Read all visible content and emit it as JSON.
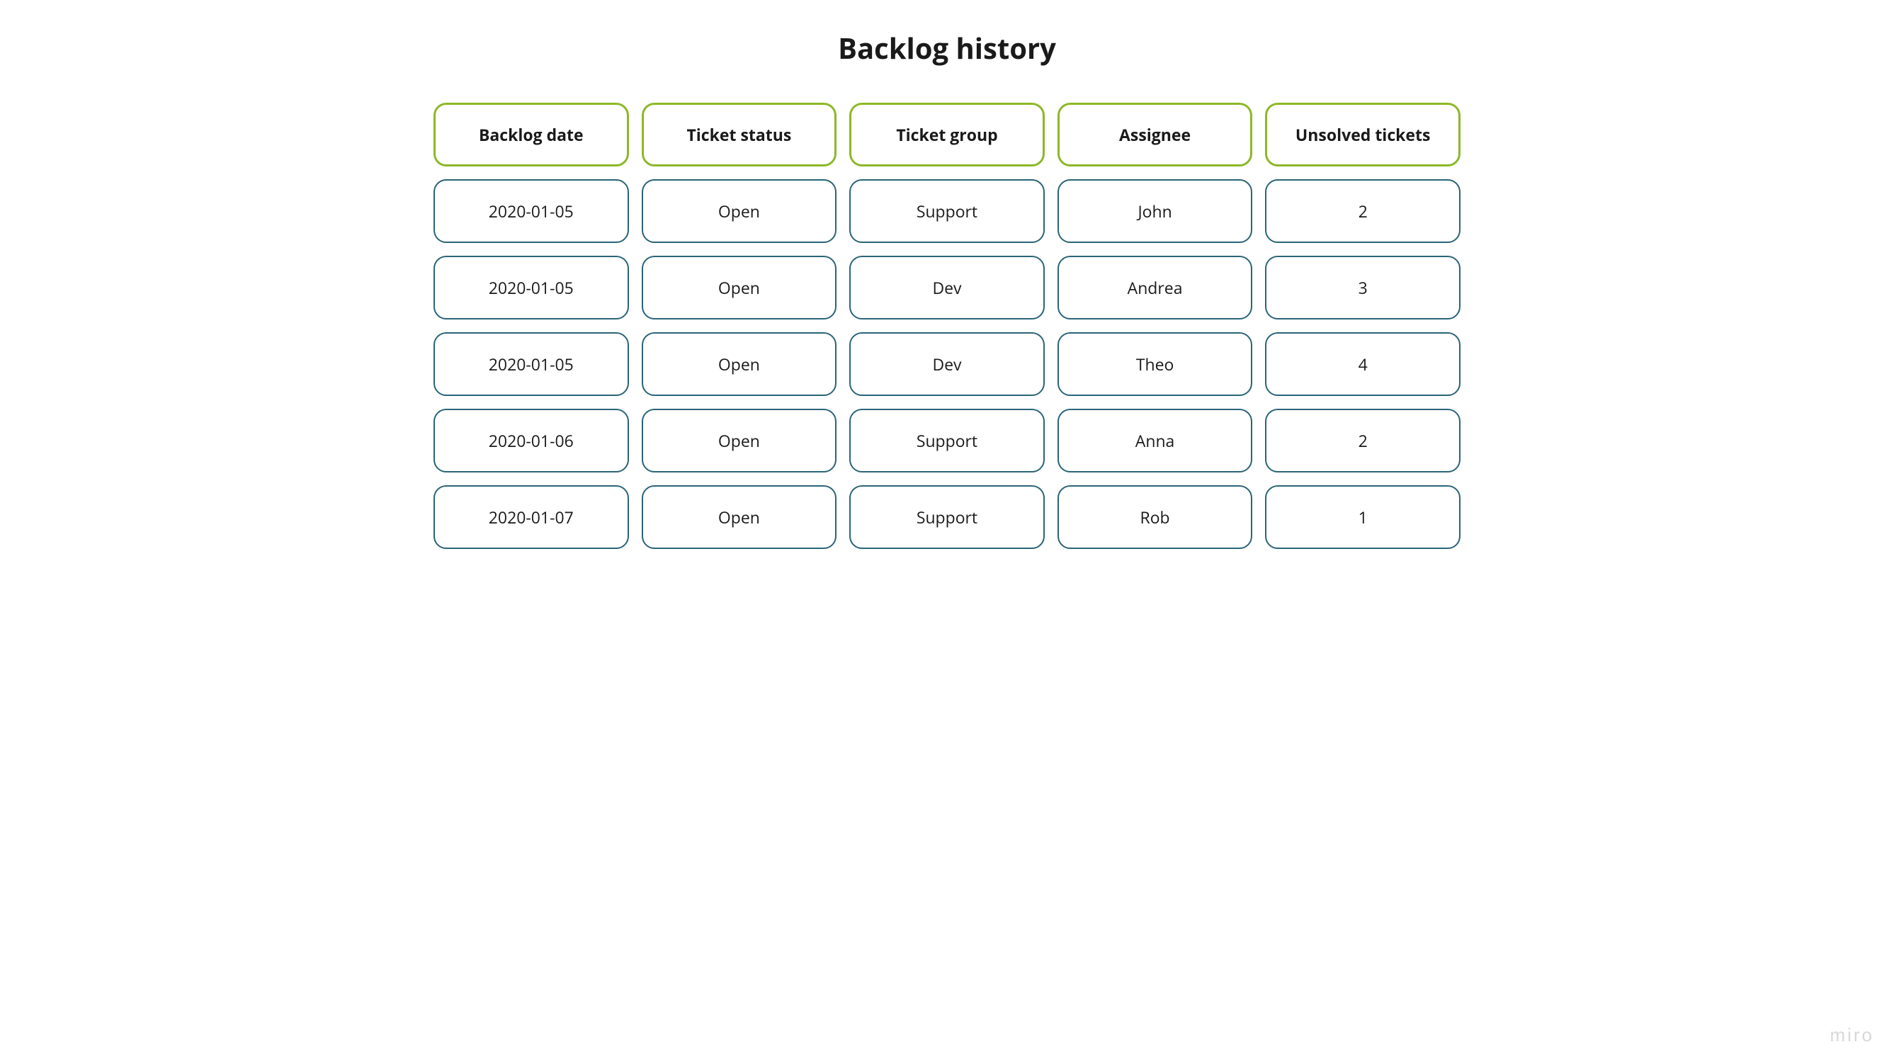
{
  "title": "Backlog history",
  "watermark": "miro",
  "styling": {
    "header_border_color": "#8cb827",
    "data_border_color": "#2a6478",
    "background_color": "#ffffff",
    "text_color": "#1a1a1a",
    "title_fontsize": 40,
    "cell_fontsize": 23,
    "border_radius": 18,
    "header_border_width": 3,
    "data_border_width": 2.5,
    "row_gap": 18,
    "col_gap": 18
  },
  "table": {
    "type": "table",
    "columns": [
      {
        "label": "Backlog date"
      },
      {
        "label": "Ticket status"
      },
      {
        "label": "Ticket group"
      },
      {
        "label": "Assignee"
      },
      {
        "label": "Unsolved tickets"
      }
    ],
    "rows": [
      {
        "cells": [
          "2020-01-05",
          "Open",
          "Support",
          "John",
          "2"
        ]
      },
      {
        "cells": [
          "2020-01-05",
          "Open",
          "Dev",
          "Andrea",
          "3"
        ]
      },
      {
        "cells": [
          "2020-01-05",
          "Open",
          "Dev",
          "Theo",
          "4"
        ]
      },
      {
        "cells": [
          "2020-01-06",
          "Open",
          "Support",
          "Anna",
          "2"
        ]
      },
      {
        "cells": [
          "2020-01-07",
          "Open",
          "Support",
          "Rob",
          "1"
        ]
      }
    ]
  }
}
